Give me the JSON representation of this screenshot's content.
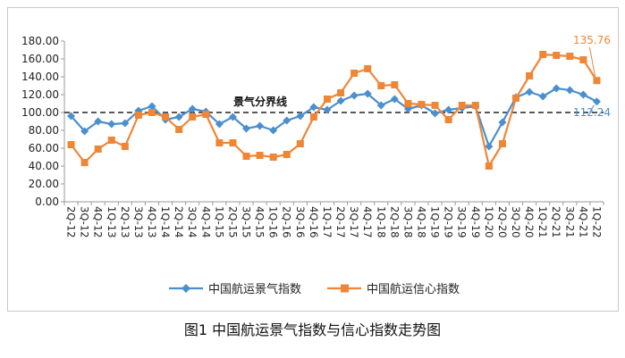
{
  "caption": "图1 中国航运景气指数与信心指数走势图",
  "chart_data": {
    "type": "line",
    "title": "",
    "xlabel": "",
    "ylabel": "",
    "ylim": [
      0,
      180
    ],
    "yticks": [
      "0.00",
      "20.00",
      "40.00",
      "60.00",
      "80.00",
      "100.00",
      "120.00",
      "140.00",
      "160.00",
      "180.00"
    ],
    "grid": false,
    "legend": "bottom",
    "reference_line": {
      "value": 100,
      "label": "景气分界线"
    },
    "categories": [
      "2Q-12",
      "3Q-12",
      "4Q-12",
      "1Q-13",
      "2Q-13",
      "3Q-13",
      "4Q-13",
      "1Q-14",
      "2Q-14",
      "3Q-14",
      "4Q-14",
      "1Q-15",
      "2Q-15",
      "3Q-15",
      "4Q-15",
      "1Q-16",
      "2Q-16",
      "3Q-16",
      "4Q-16",
      "1Q-17",
      "2Q-17",
      "3Q-17",
      "4Q-17",
      "1Q-18",
      "2Q-18",
      "3Q-18",
      "4Q-18",
      "1Q-19",
      "2Q-19",
      "3Q-19",
      "4Q-19",
      "1Q-20",
      "2Q-20",
      "3Q-20",
      "4Q-20",
      "1Q-21",
      "2Q-21",
      "3Q-21",
      "4Q-21",
      "1Q-22"
    ],
    "series": [
      {
        "name": "中国航运景气指数",
        "color": "#4a8fce",
        "marker": "diamond",
        "values": [
          96,
          79,
          90,
          87,
          88,
          102,
          107,
          92,
          95,
          104,
          101,
          87,
          95,
          82,
          85,
          80,
          91,
          96,
          106,
          103,
          113,
          119,
          121,
          108,
          115,
          104,
          108,
          99,
          103,
          105,
          107,
          62,
          89,
          117,
          123,
          118,
          127,
          125,
          120,
          112.24
        ],
        "end_label": "112.24"
      },
      {
        "name": "中国航运信心指数",
        "color": "#ef8636",
        "marker": "square",
        "values": [
          64,
          44,
          59,
          69,
          62,
          97,
          100,
          95,
          81,
          95,
          98,
          66,
          66,
          51,
          52,
          50,
          53,
          65,
          95,
          115,
          122,
          144,
          149,
          130,
          131,
          110,
          109,
          108,
          92,
          108,
          108,
          40,
          65,
          116,
          141,
          165,
          164,
          163,
          159,
          135.76
        ],
        "end_label": "135.76"
      }
    ]
  }
}
